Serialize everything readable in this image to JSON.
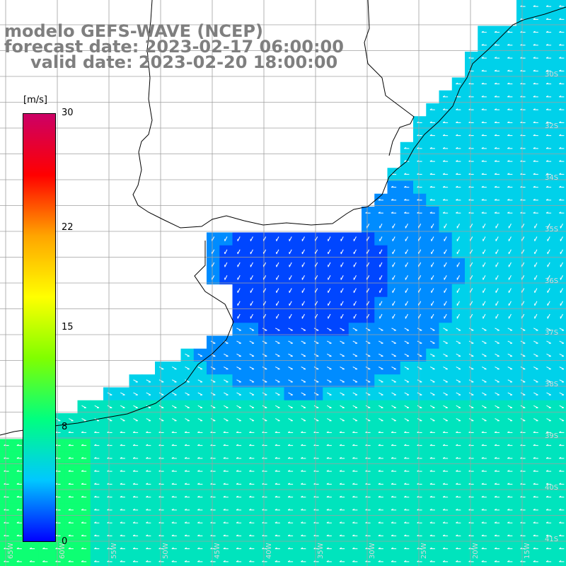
{
  "header": {
    "model": "modelo GEFS-WAVE (NCEP)",
    "forecast": "forecast date: 2023-02-17 06:00:00",
    "valid": "valid date: 2023-02-20 18:00:00"
  },
  "colorbar": {
    "unit": "[m/s]",
    "ticks": [
      {
        "value": 30,
        "label": "30"
      },
      {
        "value": 22,
        "label": "22"
      },
      {
        "value": 15,
        "label": "15"
      },
      {
        "value": 8,
        "label": "8"
      },
      {
        "value": 0,
        "label": "0"
      }
    ],
    "stops": [
      "#0000ff",
      "#00c8ff",
      "#00ff80",
      "#80ff00",
      "#ffff00",
      "#ffa500",
      "#ff0000",
      "#cc0066"
    ],
    "range": [
      0,
      30
    ]
  },
  "map": {
    "land_color": "#ffffff",
    "grid_color": "#a0a0a0",
    "arrow_color": "#ffffff",
    "lat_labels": [
      "30S",
      "32S",
      "34S",
      "35S",
      "36S",
      "37S",
      "38S",
      "39S",
      "40S",
      "41S"
    ],
    "lon_labels": [
      "65W",
      "60W",
      "55W",
      "50W",
      "45W",
      "40W",
      "35W",
      "30W",
      "25W",
      "20W",
      "15W"
    ],
    "wave_direction": "mostly from northeast near coast, from east in south"
  }
}
